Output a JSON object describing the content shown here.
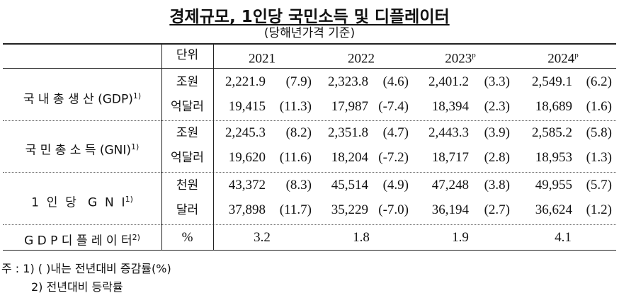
{
  "title": "경제규모, 1인당 국민소득 및 디플레이터",
  "subtitle": "(당해년가격 기준)",
  "header": {
    "unit": "단위",
    "years": [
      {
        "label": "2021",
        "sup": ""
      },
      {
        "label": "2022",
        "sup": ""
      },
      {
        "label": "2023",
        "sup": "p"
      },
      {
        "label": "2024",
        "sup": "p"
      }
    ]
  },
  "groups": [
    {
      "label": "국 내 총 생 산 (GDP)",
      "sup": "1)",
      "rows": [
        {
          "unit": "조원",
          "values": [
            [
              "2,221.9",
              "(7.9)"
            ],
            [
              "2,323.8",
              "(4.6)"
            ],
            [
              "2,401.2",
              "(3.3)"
            ],
            [
              "2,549.1",
              "(6.2)"
            ]
          ]
        },
        {
          "unit": "억달러",
          "values": [
            [
              "19,415",
              "(11.3)"
            ],
            [
              "17,987",
              "(-7.4)"
            ],
            [
              "18,394",
              "(2.3)"
            ],
            [
              "18,689",
              "(1.6)"
            ]
          ]
        }
      ]
    },
    {
      "label": "국 민 총 소 득 (GNI)",
      "sup": "1)",
      "rows": [
        {
          "unit": "조원",
          "values": [
            [
              "2,245.3",
              "(8.2)"
            ],
            [
              "2,351.8",
              "(4.7)"
            ],
            [
              "2,443.3",
              "(3.9)"
            ],
            [
              "2,585.2",
              "(5.8)"
            ]
          ]
        },
        {
          "unit": "억달러",
          "values": [
            [
              "19,620",
              "(11.6)"
            ],
            [
              "18,204",
              "(-7.2)"
            ],
            [
              "18,717",
              "(2.8)"
            ],
            [
              "18,953",
              "(1.3)"
            ]
          ]
        }
      ]
    },
    {
      "label": "1  인  당   G  N  I",
      "sup": "1)",
      "rows": [
        {
          "unit": "천원",
          "values": [
            [
              "43,372",
              "(8.3)"
            ],
            [
              "45,514",
              "(4.9)"
            ],
            [
              "47,248",
              "(3.8)"
            ],
            [
              "49,955",
              "(5.7)"
            ]
          ]
        },
        {
          "unit": "달러",
          "values": [
            [
              "37,898",
              "(11.7)"
            ],
            [
              "35,229",
              "(-7.0)"
            ],
            [
              "36,194",
              "(2.7)"
            ],
            [
              "36,624",
              "(1.2)"
            ]
          ]
        }
      ]
    }
  ],
  "deflator": {
    "label": "G D P 디 플 레 이 터",
    "sup": "2)",
    "unit": "%",
    "values": [
      "3.2",
      "1.8",
      "1.9",
      "4.1"
    ]
  },
  "notes": [
    "주 : 1) (    )내는 전년대비 증감률(%)",
    "2) 전년대비 등락률"
  ]
}
